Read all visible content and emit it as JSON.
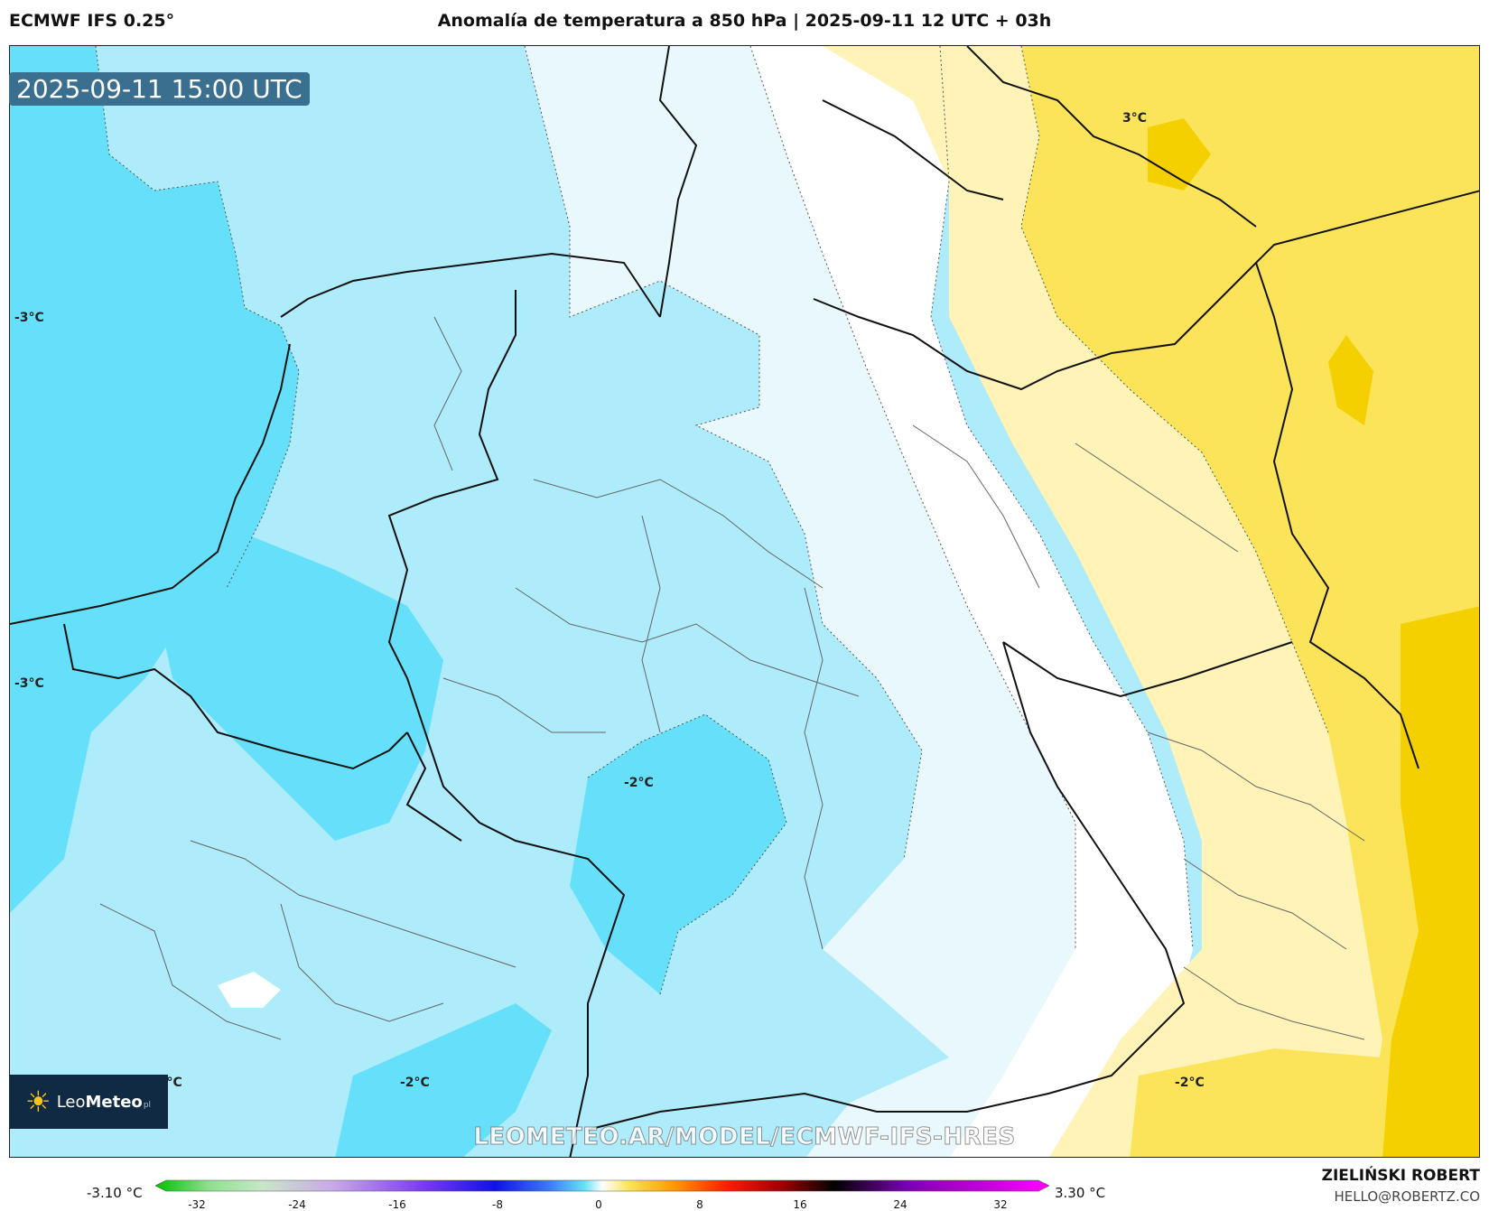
{
  "header": {
    "model": "ECMWF IFS 0.25°",
    "title": "Anomalía de temperatura a 850 hPa | 2025-09-11 12 UTC + 03h"
  },
  "map": {
    "valid_time": "2025-09-11 15:00 UTC",
    "watermark": "LEOMETEO.AR/MODEL/ECMWF-IFS-HRES",
    "contour_labels": [
      "-3°C",
      "-3°C",
      "-2°C",
      "-2°C",
      "-2°C",
      "-2°C",
      "3°C"
    ],
    "colors": {
      "anomaly_minus3": "#66e0fa",
      "anomaly_minus2": "#aeebfb",
      "anomaly_minus1": "#e8f8fd",
      "neutral": "#ffffff",
      "anomaly_plus1": "#fff3b8",
      "anomaly_plus2": "#fbe45a",
      "anomaly_plus3": "#f5d000"
    }
  },
  "logo": {
    "name_light": "Leo",
    "name_bold": "Meteo",
    "suffix": "pl",
    "icon": "sun-icon"
  },
  "colorbar": {
    "min_label": "-3.10 °C",
    "max_label": "3.30 °C",
    "ticks": [
      "-32",
      "-24",
      "-16",
      "-8",
      "0",
      "8",
      "16",
      "24",
      "32"
    ]
  },
  "footer": {
    "author": "ZIELIŃSKI ROBERT",
    "email": "HELLO@ROBERTZ.CO"
  }
}
